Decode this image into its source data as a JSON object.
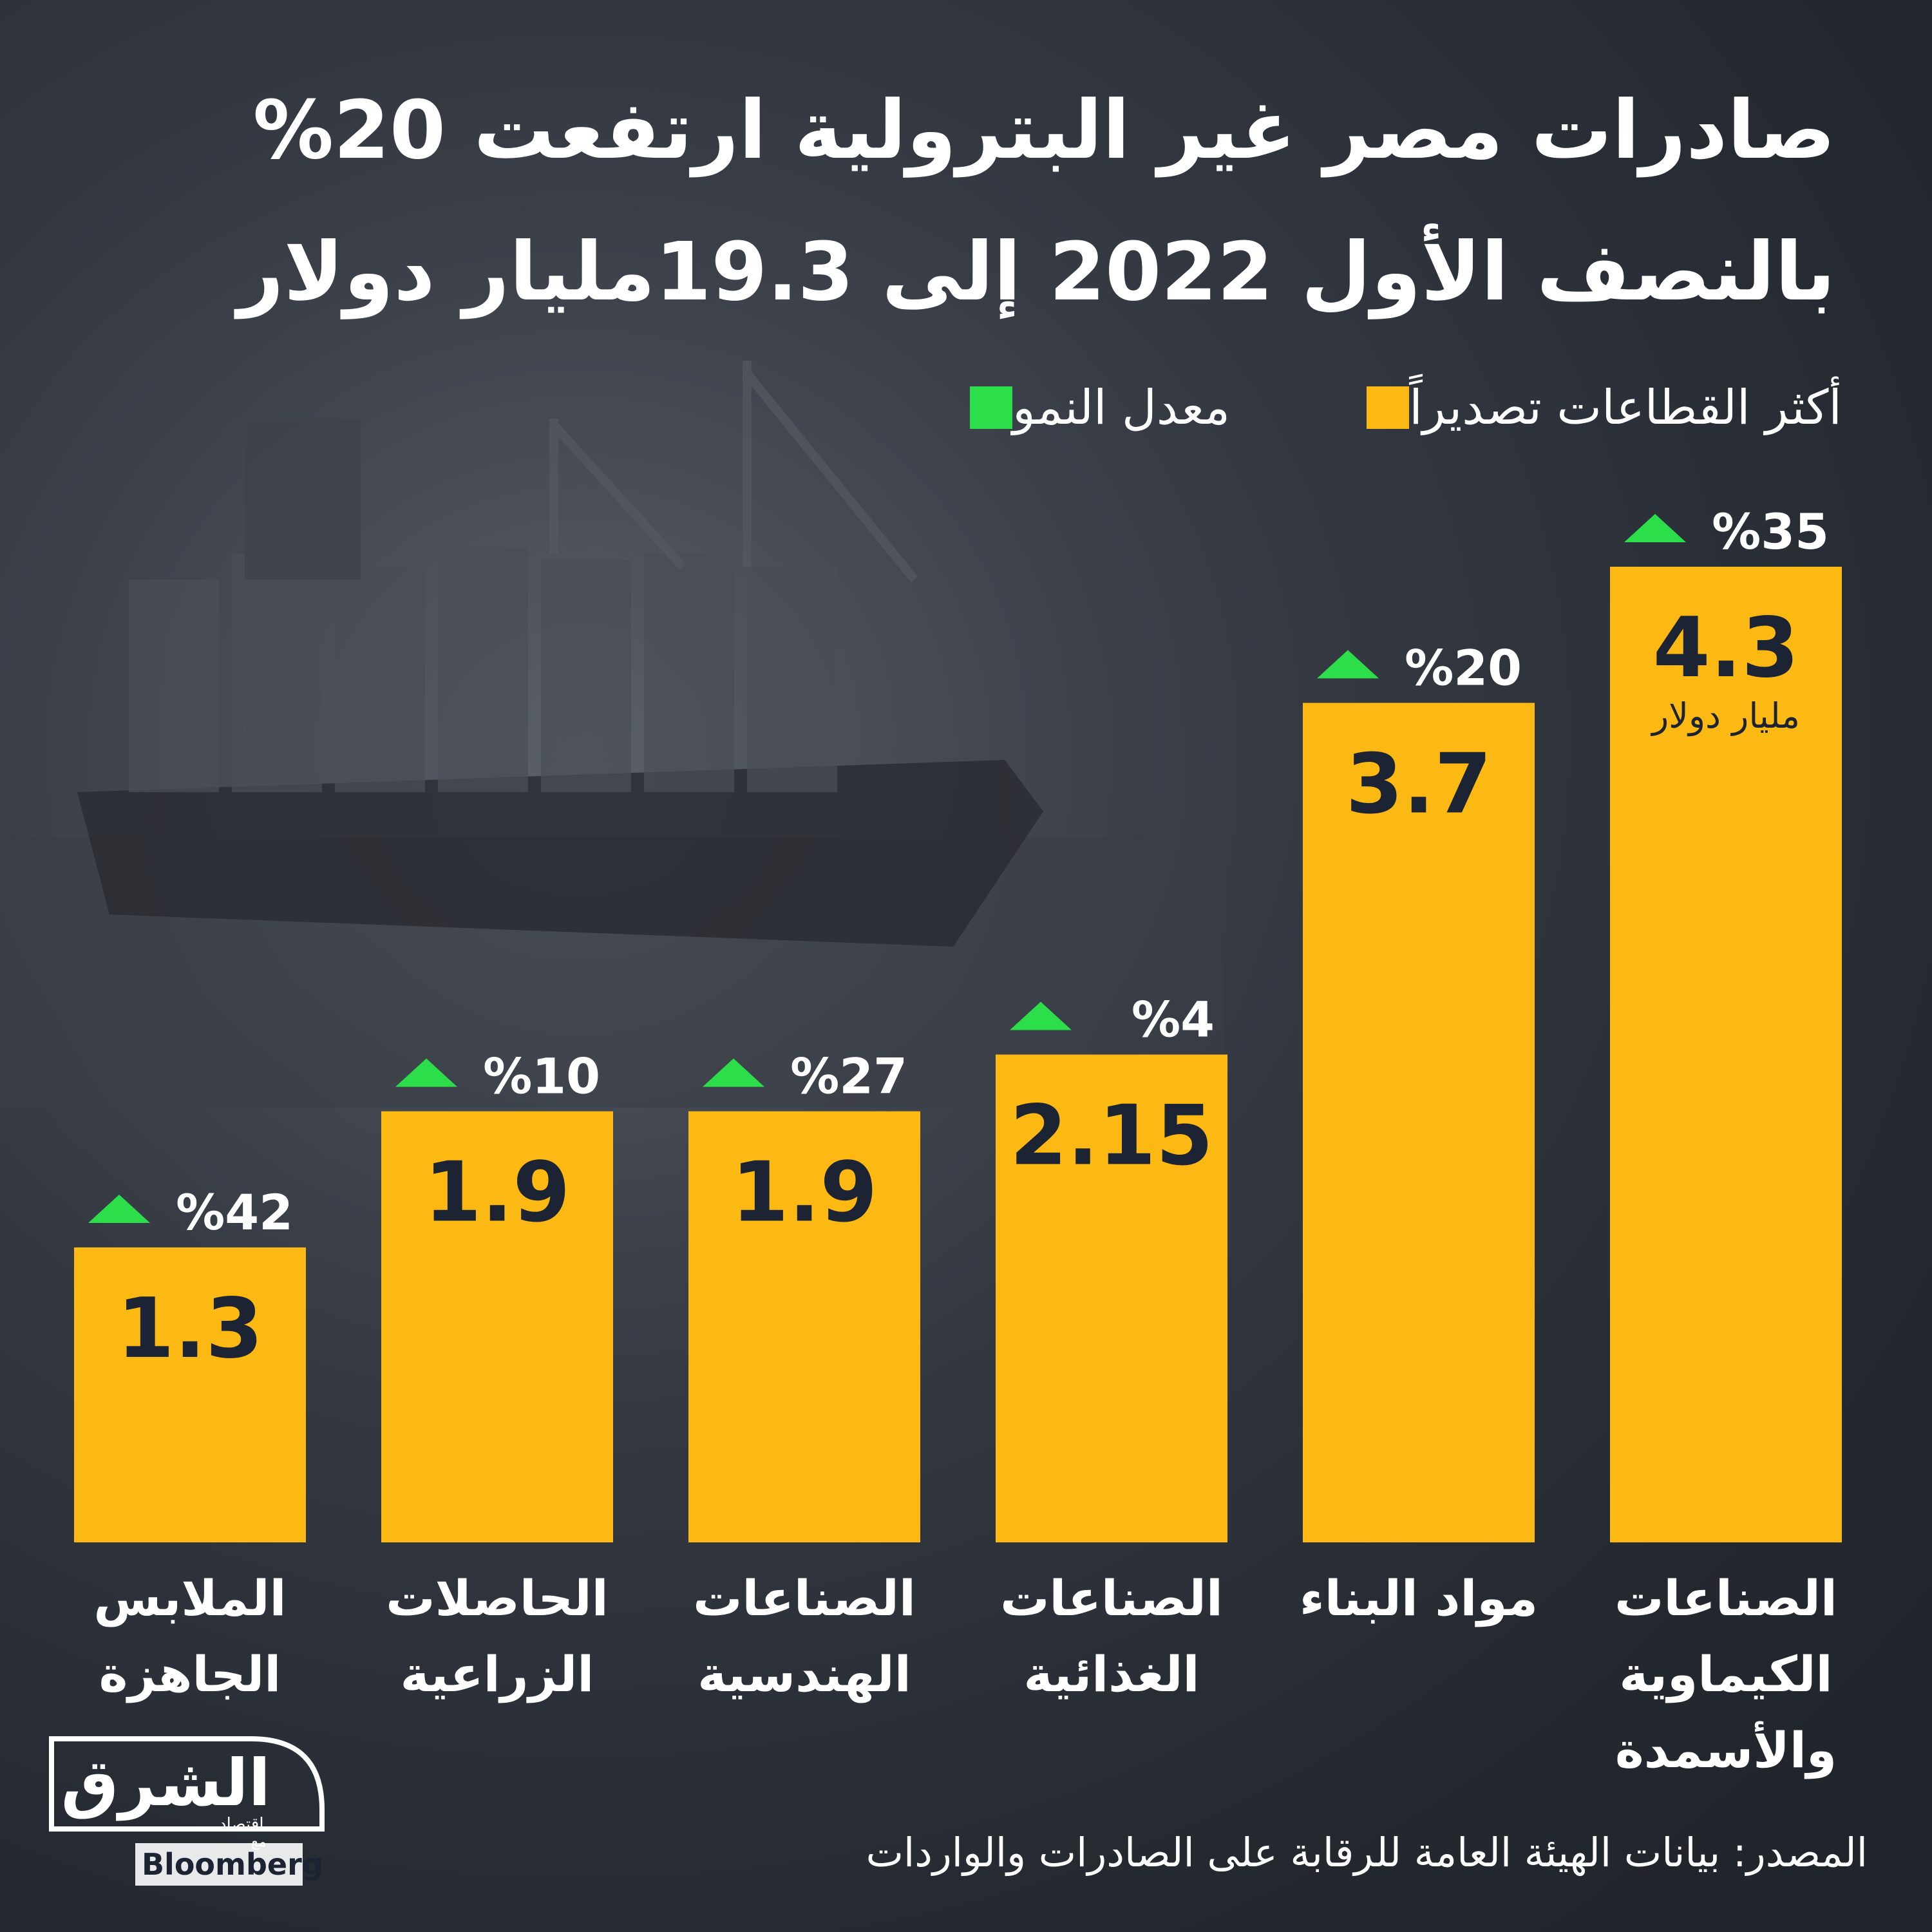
{
  "title": {
    "line1": "صادرات مصر غير البترولية ارتفعت 20%",
    "line2": "بالنصف الأول 2022 إلى 19.3مليار دولار"
  },
  "legend": {
    "sectors_label": "أكثر القطاعات تصديراً",
    "growth_label": "معدل النمو"
  },
  "colors": {
    "bar": "#fdb913",
    "growth": "#2bde4a",
    "value_text": "#1c2333",
    "text": "#ffffff"
  },
  "chart_data": {
    "type": "bar",
    "categories": [
      [
        "الصناعات",
        "الكيماوية",
        "والأسمدة"
      ],
      [
        "مواد البناء"
      ],
      [
        "الصناعات",
        "الغذائية"
      ],
      [
        "الصناعات",
        "الهندسية"
      ],
      [
        "الحاصلات",
        "الزراعية"
      ],
      [
        "الملابس",
        "الجاهزة"
      ]
    ],
    "values": [
      4.3,
      3.7,
      2.15,
      1.9,
      1.9,
      1.3
    ],
    "value_labels": [
      "4.3",
      "3.7",
      "2.15",
      "1.9",
      "1.9",
      "1.3"
    ],
    "growth_labels": [
      "%35",
      "%20",
      "%4",
      "%27",
      "%10",
      "%42"
    ],
    "unit_label": "مليار دولار",
    "ylim": [
      0,
      4.3
    ],
    "order": "right-to-left"
  },
  "source": "المصدر: بيانات الهيئة العامة للرقابة على الصادرات والواردات",
  "logo": {
    "brand": "الشرق",
    "sub": "اقتصاد",
    "with": "مع",
    "partner": "Bloomberg"
  }
}
